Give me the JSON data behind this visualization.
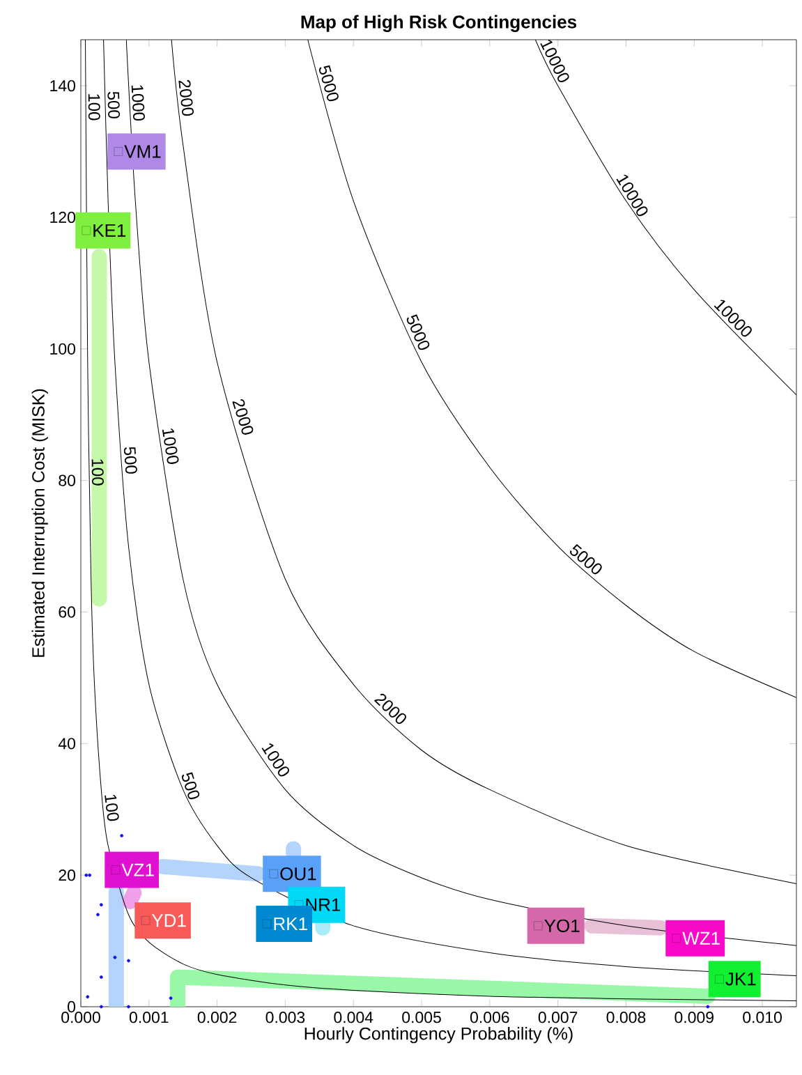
{
  "chart_data": {
    "type": "line",
    "title": "Map of High Risk Contingencies",
    "xlabel": "Hourly Contingency Probability (%)",
    "ylabel": "Estimated Interruption Cost (MISK)",
    "xlim": [
      0,
      0.0105
    ],
    "ylim": [
      0,
      147
    ],
    "xticks": [
      {
        "value": 0,
        "label": "0.000"
      },
      {
        "value": 0.001,
        "label": "0.001"
      },
      {
        "value": 0.002,
        "label": "0.002"
      },
      {
        "value": 0.003,
        "label": "0.003"
      },
      {
        "value": 0.004,
        "label": "0.004"
      },
      {
        "value": 0.005,
        "label": "0.005"
      },
      {
        "value": 0.006,
        "label": "0.006"
      },
      {
        "value": 0.007,
        "label": "0.007"
      },
      {
        "value": 0.008,
        "label": "0.008"
      },
      {
        "value": 0.009,
        "label": "0.009"
      },
      {
        "value": 0.01,
        "label": "0.010"
      }
    ],
    "yticks": [
      0,
      20,
      40,
      60,
      80,
      100,
      120,
      140
    ],
    "series": [
      {
        "color": "#c6f8a9",
        "x": [
          0.00027,
          0.00027
        ],
        "values": [
          114,
          62
        ]
      },
      {
        "color": "#b4d4fc",
        "x": [
          0.00312,
          0.00312
        ],
        "values": [
          23.3,
          24
        ]
      },
      {
        "color": "#b4d4fc",
        "x": [
          0.0026,
          0.0012
        ],
        "values": [
          20.2,
          21.3
        ]
      },
      {
        "color": "#b4d4fc",
        "x": [
          0.00052,
          0.00052
        ],
        "values": [
          17.5,
          0
        ]
      },
      {
        "color": "#f0a0e8",
        "x": [
          0.00078,
          0.00072
        ],
        "values": [
          17.3,
          16
        ]
      },
      {
        "color": "#a8ecf8",
        "x": [
          0.00355,
          0.00355
        ],
        "values": [
          12.6,
          12
        ]
      },
      {
        "color": "#e8c0d8",
        "x": [
          0.0075,
          0.0085
        ],
        "values": [
          12.3,
          12
        ]
      },
      {
        "color": "#98f8a8",
        "x": [
          0.0092,
          0.00142,
          0.00142
        ],
        "values": [
          1.6,
          4.5,
          0
        ]
      },
      {
        "name": "100",
        "color": "#000000",
        "x": [
          6.67e-05,
          0.0001,
          0.00015,
          0.0002,
          0.0003,
          0.0004,
          0.0007,
          0.001,
          0.0015,
          0.002,
          0.003,
          0.004,
          0.006,
          0.008,
          0.0105
        ],
        "values": [
          147,
          98,
          65,
          49,
          33,
          24.5,
          14,
          9.8,
          6.5,
          4.9,
          3.3,
          2.5,
          1.6,
          1.2,
          0.9
        ]
      },
      {
        "name": "500",
        "color": "#000000",
        "x": [
          0.000333,
          0.0004,
          0.0005,
          0.0007,
          0.001,
          0.0015,
          0.002,
          0.0025,
          0.004,
          0.006,
          0.008,
          0.0105
        ],
        "values": [
          147,
          122.5,
          98,
          70,
          49,
          33,
          24.5,
          19.6,
          12.3,
          8.2,
          6.1,
          4.7
        ]
      },
      {
        "name": "1000",
        "color": "#000000",
        "x": [
          0.000667,
          0.0008,
          0.001,
          0.0015,
          0.002,
          0.003,
          0.004,
          0.005,
          0.006,
          0.008,
          0.0105
        ],
        "values": [
          147,
          122.5,
          98,
          65,
          49,
          33,
          24.5,
          19.6,
          16.3,
          12.3,
          9.3
        ]
      },
      {
        "name": "2000",
        "color": "#000000",
        "x": [
          0.00133,
          0.0015,
          0.002,
          0.003,
          0.004,
          0.005,
          0.006,
          0.008,
          0.0105
        ],
        "values": [
          147,
          131,
          98,
          65,
          49,
          39,
          33,
          24.5,
          18.7
        ]
      },
      {
        "name": "5000",
        "color": "#000000",
        "x": [
          0.00333,
          0.004,
          0.005,
          0.006,
          0.007,
          0.008,
          0.009,
          0.0105
        ],
        "values": [
          147,
          122.5,
          98,
          82,
          70,
          61,
          54,
          47
        ]
      },
      {
        "name": "10000",
        "color": "#000000",
        "x": [
          0.00667,
          0.007,
          0.008,
          0.009,
          0.0105
        ],
        "values": [
          147,
          140,
          122.5,
          109,
          93
        ]
      },
      {
        "type": "scatter",
        "marker": "circle",
        "color": "#1010e8",
        "x": [
          0.0001,
          0.00013,
          0.0003,
          0.00025,
          0.0005,
          0.0003,
          0.0006,
          0.0007,
          8e-05,
          0.0003,
          0.0007,
          0.00132,
          0.0092
        ],
        "values": [
          1.5,
          20,
          15.5,
          14,
          7.5,
          4.5,
          26,
          7,
          20,
          0,
          0,
          1.3,
          0
        ]
      },
      {
        "name": "KE1",
        "type": "scatter",
        "marker": "square",
        "color": "#80f040",
        "x": [
          8e-05
        ],
        "values": [
          118
        ]
      },
      {
        "name": "VM1",
        "type": "scatter",
        "marker": "square",
        "color": "#b088e8",
        "x": [
          0.00055
        ],
        "values": [
          130
        ]
      },
      {
        "name": "OU1",
        "type": "scatter",
        "marker": "square",
        "color": "#58a0f8",
        "x": [
          0.00283
        ],
        "values": [
          20.2
        ]
      },
      {
        "name": "VZ1",
        "type": "scatter",
        "marker": "square",
        "color": "#e010d0",
        "x": [
          0.00051
        ],
        "values": [
          20.8
        ]
      },
      {
        "name": "YD1",
        "type": "scatter",
        "marker": "square",
        "color": "#f85a5a",
        "x": [
          0.00095
        ],
        "values": [
          13.1
        ]
      },
      {
        "name": "NR1",
        "type": "scatter",
        "marker": "square",
        "color": "#00d8f8",
        "x": [
          0.0032
        ],
        "values": [
          15.5
        ]
      },
      {
        "name": "RK1",
        "type": "scatter",
        "marker": "square",
        "color": "#0088d0",
        "x": [
          0.00273
        ],
        "values": [
          12.6
        ]
      },
      {
        "name": "YO1",
        "type": "scatter",
        "marker": "square",
        "color": "#d468a8",
        "x": [
          0.00671
        ],
        "values": [
          12.3
        ]
      },
      {
        "name": "WZ1",
        "type": "scatter",
        "marker": "square",
        "color": "#f808c8",
        "x": [
          0.00874
        ],
        "values": [
          10.4
        ]
      },
      {
        "name": "JK1",
        "type": "scatter",
        "marker": "square",
        "color": "#10f030",
        "x": [
          0.00937
        ],
        "values": [
          4.2
        ]
      }
    ]
  }
}
